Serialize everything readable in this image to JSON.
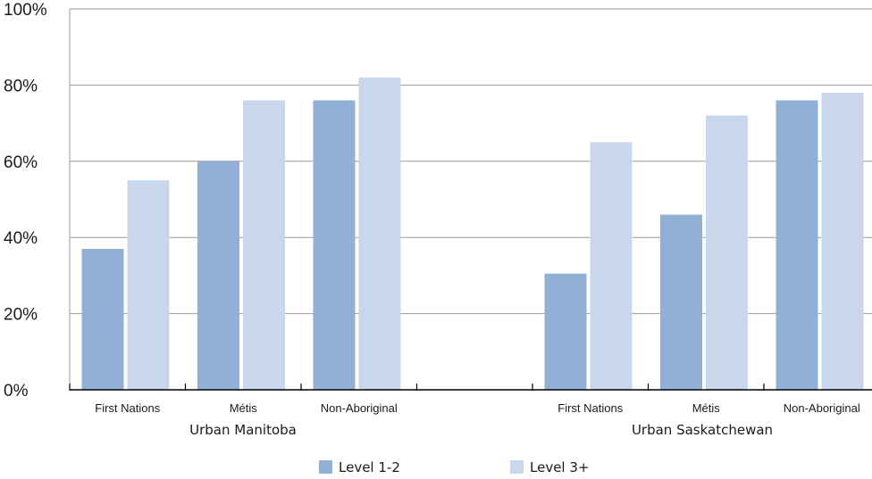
{
  "chart_data": {
    "type": "bar",
    "ylim": [
      0,
      100
    ],
    "yticks": [
      "0%",
      "20%",
      "40%",
      "60%",
      "80%",
      "100%"
    ],
    "grid": true,
    "legend_position": "bottom",
    "groups": [
      {
        "label": "Urban Manitoba",
        "categories": [
          "First Nations",
          "Métis",
          "Non-Aboriginal"
        ]
      },
      {
        "label": "Urban Saskatchewan",
        "categories": [
          "First Nations",
          "Métis",
          "Non-Aboriginal"
        ]
      }
    ],
    "series": [
      {
        "name": "Level 1-2",
        "color": "#91b0d6",
        "values": [
          37,
          60,
          76,
          30.5,
          46,
          76
        ]
      },
      {
        "name": "Level 3+",
        "color": "#c8d7eb",
        "values": [
          55,
          76,
          82,
          65,
          72,
          78
        ]
      }
    ]
  }
}
